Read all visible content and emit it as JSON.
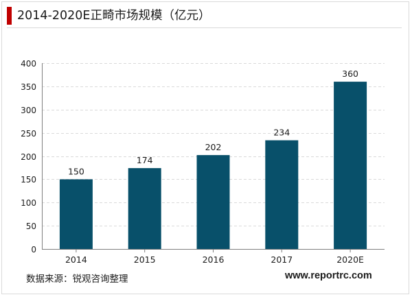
{
  "title": "2014-2020E正畸市场规模（亿元）",
  "footer": {
    "source": "数据来源：锐观咨询整理",
    "website": "www.reportrc.com"
  },
  "colors": {
    "accent": "#c00000",
    "bar": "#08506a",
    "grid": "#d9d9d9",
    "text": "#1a1a1a"
  },
  "chart_data": {
    "type": "bar",
    "title": "2014-2020E正畸市场规模（亿元）",
    "categories": [
      "2014",
      "2015",
      "2016",
      "2017",
      "2020E"
    ],
    "values": [
      150,
      174,
      202,
      234,
      360
    ],
    "data_labels": [
      "150",
      "174",
      "202",
      "234",
      "360"
    ],
    "xlabel": "",
    "ylabel": "",
    "ylim": [
      0,
      400
    ],
    "yticks": [
      0,
      50,
      100,
      150,
      200,
      250,
      300,
      350,
      400
    ],
    "grid": true,
    "grid_style": "dashed",
    "legend": "none"
  }
}
